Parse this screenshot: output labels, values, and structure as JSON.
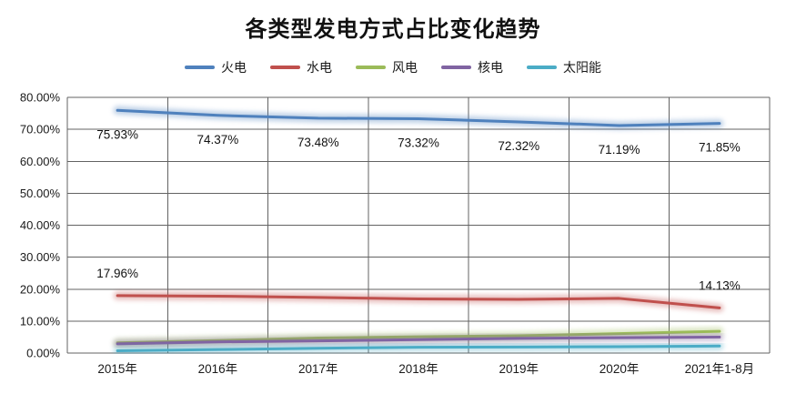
{
  "page": {
    "background": "#ffffff",
    "text_color": "#1a1a1a",
    "grid_color": "#636363"
  },
  "chart_data": {
    "type": "line",
    "title": "各类型发电方式占比变化趋势",
    "legend_position": "top",
    "grid": {
      "horizontal": true,
      "vertical": true
    },
    "categories": [
      "2015年",
      "2016年",
      "2017年",
      "2018年",
      "2019年",
      "2020年",
      "2021年1-8月"
    ],
    "y_axis": {
      "min": 0,
      "max": 80,
      "step": 10,
      "unit": "percent",
      "tick_labels": [
        "0.00%",
        "10.00%",
        "20.00%",
        "30.00%",
        "40.00%",
        "50.00%",
        "60.00%",
        "70.00%",
        "80.00%"
      ]
    },
    "series": [
      {
        "key": "thermal",
        "name": "火电",
        "color": "#4F81BD",
        "values": [
          75.93,
          74.37,
          73.48,
          73.32,
          72.32,
          71.19,
          71.85
        ],
        "data_labels": [
          "75.93%",
          "74.37%",
          "73.48%",
          "73.32%",
          "72.32%",
          "71.19%",
          "71.85%"
        ],
        "label_side": "below"
      },
      {
        "key": "hydro",
        "name": "水电",
        "color": "#C0504D",
        "values": [
          17.96,
          17.8,
          17.4,
          16.95,
          16.8,
          17.1,
          14.13
        ],
        "data_labels": [
          "17.96%",
          null,
          null,
          null,
          null,
          null,
          "14.13%"
        ],
        "label_side": "above"
      },
      {
        "key": "wind",
        "name": "风电",
        "color": "#9BBB59",
        "values": [
          3.2,
          3.9,
          4.7,
          5.1,
          5.4,
          6.1,
          6.8
        ],
        "data_labels": [
          null,
          null,
          null,
          null,
          null,
          null,
          null
        ],
        "label_side": "above"
      },
      {
        "key": "nuclear",
        "name": "核电",
        "color": "#8064A2",
        "values": [
          2.9,
          3.5,
          3.8,
          4.2,
          4.6,
          4.8,
          5.0
        ],
        "data_labels": [
          null,
          null,
          null,
          null,
          null,
          null,
          null
        ],
        "label_side": "above"
      },
      {
        "key": "solar",
        "name": "太阳能",
        "color": "#4BACC6",
        "values": [
          0.7,
          1.1,
          1.5,
          1.8,
          1.9,
          2.0,
          2.2
        ],
        "data_labels": [
          null,
          null,
          null,
          null,
          null,
          null,
          null
        ],
        "label_side": "above"
      }
    ]
  }
}
